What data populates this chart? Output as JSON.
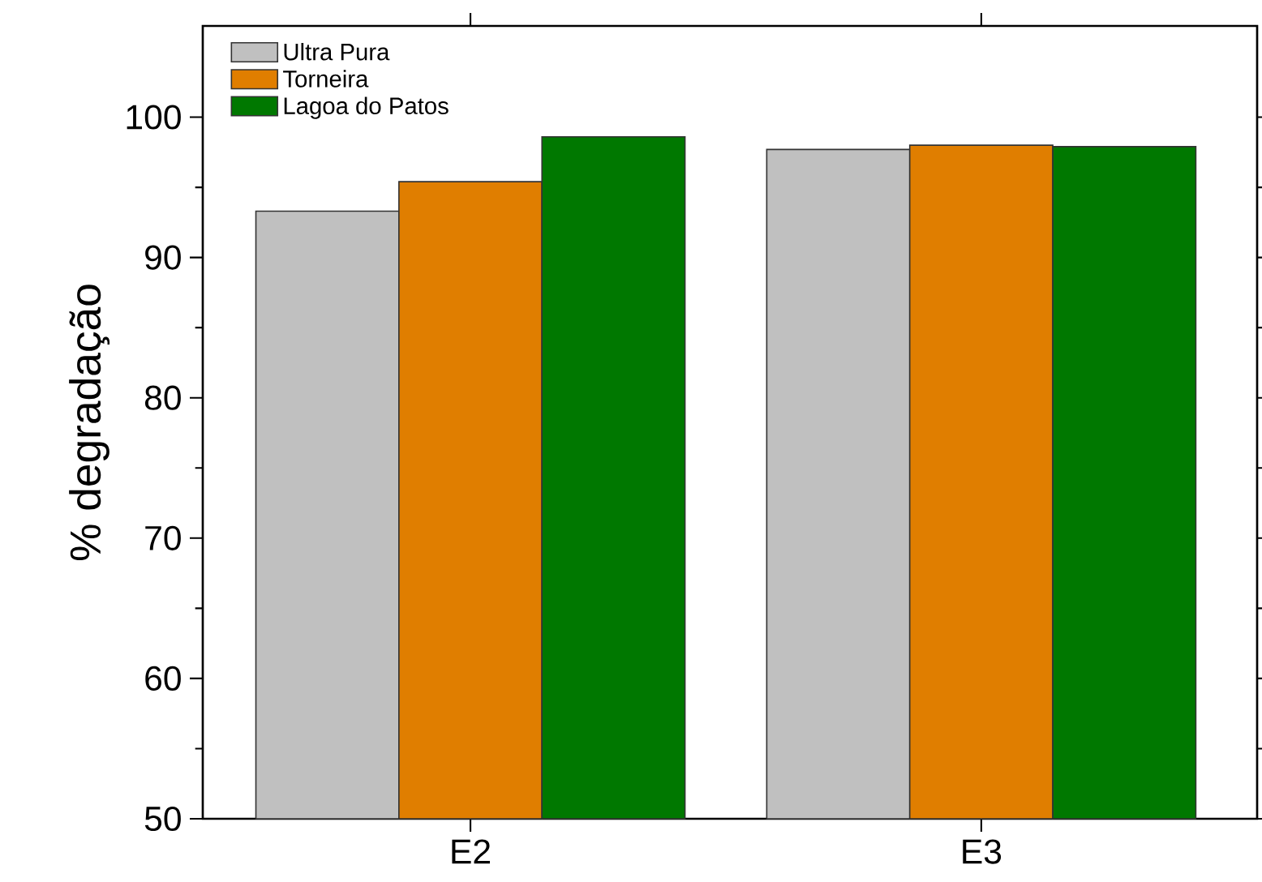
{
  "chart_data": {
    "type": "bar",
    "ylabel": "% degradação",
    "categories": [
      "E2",
      "E3"
    ],
    "series": [
      {
        "name": "Ultra Pura",
        "color": "#c0c0c0",
        "values": [
          93.3,
          97.7
        ]
      },
      {
        "name": "Torneira",
        "color": "#e07e00",
        "values": [
          95.4,
          98.0
        ]
      },
      {
        "name": "Lagoa do Patos",
        "color": "#007800",
        "values": [
          98.6,
          97.9
        ]
      }
    ],
    "ylim": [
      50,
      106.5
    ],
    "yticks": [
      50,
      60,
      70,
      80,
      90,
      100
    ],
    "grid": false,
    "legend": "top left"
  }
}
